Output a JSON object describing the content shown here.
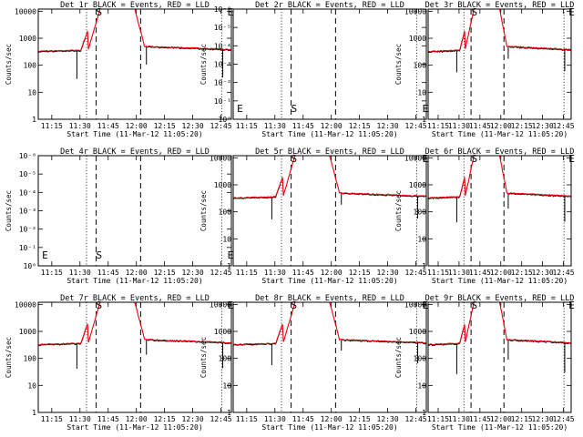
{
  "chart_data": [
    {
      "id": "det1r",
      "type": "line",
      "title": "Det 1r BLACK = Events, RED = LLD",
      "xlabel": "Start Time (11-Mar-12 11:05:20)",
      "ylabel": "Counts/sec",
      "scale": "log",
      "ylim": [
        1,
        12000
      ],
      "yticks": [
        1,
        10,
        100,
        1000,
        10000
      ],
      "ytick_labels": [
        "1",
        "10",
        "100",
        "1000",
        "10000"
      ],
      "xticks": [
        "11:15",
        "11:30",
        "11:45",
        "12:00",
        "12:15",
        "12:30",
        "12:45"
      ],
      "has_data": true,
      "dip_depth": 0.35,
      "flags": [
        {
          "t": 29,
          "label": "S"
        },
        {
          "t": 97,
          "label": "E"
        }
      ]
    },
    {
      "id": "det2r",
      "type": "line",
      "title": "Det 2r BLACK = Events, RED = LLD",
      "xlabel": "Start Time (11-Mar-12 11:05:20)",
      "ylabel": "Counts/sec",
      "scale": "log",
      "ylim": [
        1,
        1e-06
      ],
      "yticks": [
        1,
        0.1,
        0.01,
        0.001,
        0.0001,
        1e-05,
        1e-06
      ],
      "ytick_labels": [
        "10⁰",
        "10⁻¹",
        "10⁻²",
        "10⁻³",
        "10⁻⁴",
        "10⁻⁵",
        "10⁻⁶"
      ],
      "xticks": [
        "11:15",
        "11:30",
        "11:45",
        "12:00",
        "12:15",
        "12:30",
        "12:45"
      ],
      "has_data": false,
      "flags": [
        {
          "t": 1,
          "label": "E"
        },
        {
          "t": 29,
          "label": "S"
        },
        {
          "t": 97,
          "label": "E"
        }
      ]
    },
    {
      "id": "det3r",
      "type": "line",
      "title": "Det 3r BLACK = Events, RED = LLD",
      "xlabel": "Start Time (11-Mar-12 11:05:20)",
      "ylabel": "Counts/sec",
      "scale": "log",
      "ylim": [
        1,
        12000
      ],
      "yticks": [
        1,
        10,
        100,
        1000,
        10000
      ],
      "ytick_labels": [
        "1",
        "10",
        "100",
        "1000",
        "10000"
      ],
      "xticks": [
        "11:15",
        "11:30",
        "11:45",
        "12:00",
        "12:15",
        "12:30",
        "12:45"
      ],
      "has_data": true,
      "dip_depth": 0.6,
      "flags": [
        {
          "t": 29,
          "label": "S"
        },
        {
          "t": 97,
          "label": "E"
        }
      ]
    },
    {
      "id": "det4r",
      "type": "line",
      "title": "Det 4r BLACK = Events, RED = LLD",
      "xlabel": "Start Time (11-Mar-12 11:05:20)",
      "ylabel": "Counts/sec",
      "scale": "log",
      "ylim": [
        1,
        1e-06
      ],
      "yticks": [
        1,
        0.1,
        0.01,
        0.001,
        0.0001,
        1e-05,
        1e-06
      ],
      "ytick_labels": [
        "10⁰",
        "10⁻¹",
        "10⁻²",
        "10⁻³",
        "10⁻⁴",
        "10⁻⁵",
        "10⁻⁶"
      ],
      "xticks": [
        "11:15",
        "11:30",
        "11:45",
        "12:00",
        "12:15",
        "12:30",
        "12:45"
      ],
      "has_data": false,
      "flags": [
        {
          "t": 1,
          "label": "E"
        },
        {
          "t": 29,
          "label": "S"
        },
        {
          "t": 97,
          "label": "E"
        }
      ]
    },
    {
      "id": "det5r",
      "type": "line",
      "title": "Det 5r BLACK = Events, RED = LLD",
      "xlabel": "Start Time (11-Mar-12 11:05:20)",
      "ylabel": "Counts/sec",
      "scale": "log",
      "ylim": [
        1,
        12000
      ],
      "yticks": [
        1,
        10,
        100,
        1000,
        10000
      ],
      "ytick_labels": [
        "1",
        "10",
        "100",
        "1000",
        "10000"
      ],
      "xticks": [
        "11:15",
        "11:30",
        "11:45",
        "12:00",
        "12:15",
        "12:30",
        "12:45"
      ],
      "has_data": true,
      "dip_depth": 0.6,
      "flags": [
        {
          "t": 29,
          "label": "S"
        },
        {
          "t": 97,
          "label": "E"
        }
      ]
    },
    {
      "id": "det6r",
      "type": "line",
      "title": "Det 6r BLACK = Events, RED = LLD",
      "xlabel": "Start Time (11-Mar-12 11:05:20)",
      "ylabel": "Counts/sec",
      "scale": "log",
      "ylim": [
        1,
        12000
      ],
      "yticks": [
        1,
        10,
        100,
        1000,
        10000
      ],
      "ytick_labels": [
        "1",
        "10",
        "100",
        "1000",
        "10000"
      ],
      "xticks": [
        "11:15",
        "11:30",
        "11:45",
        "12:00",
        "12:15",
        "12:30",
        "12:45"
      ],
      "has_data": true,
      "dip_depth": 0.45,
      "flags": [
        {
          "t": 29,
          "label": "S"
        },
        {
          "t": 97,
          "label": "E"
        }
      ]
    },
    {
      "id": "det7r",
      "type": "line",
      "title": "Det 7r BLACK = Events, RED = LLD",
      "xlabel": "Start Time (11-Mar-12 11:05:20)",
      "ylabel": "Counts/sec",
      "scale": "log",
      "ylim": [
        1,
        12000
      ],
      "yticks": [
        1,
        10,
        100,
        1000,
        10000
      ],
      "ytick_labels": [
        "1",
        "10",
        "100",
        "1000",
        "10000"
      ],
      "xticks": [
        "11:15",
        "11:30",
        "11:45",
        "12:00",
        "12:15",
        "12:30",
        "12:45"
      ],
      "has_data": true,
      "dip_depth": 0.45,
      "flags": [
        {
          "t": 29,
          "label": "S"
        },
        {
          "t": 97,
          "label": "E"
        }
      ]
    },
    {
      "id": "det8r",
      "type": "line",
      "title": "Det 8r BLACK = Events, RED = LLD",
      "xlabel": "Start Time (11-Mar-12 11:05:20)",
      "ylabel": "Counts/sec",
      "scale": "log",
      "ylim": [
        1,
        12000
      ],
      "yticks": [
        1,
        10,
        100,
        1000,
        10000
      ],
      "ytick_labels": [
        "1",
        "10",
        "100",
        "1000",
        "10000"
      ],
      "xticks": [
        "11:15",
        "11:30",
        "11:45",
        "12:00",
        "12:15",
        "12:30",
        "12:45"
      ],
      "has_data": true,
      "dip_depth": 0.65,
      "flags": [
        {
          "t": 29,
          "label": "S"
        },
        {
          "t": 97,
          "label": "E"
        }
      ]
    },
    {
      "id": "det9r",
      "type": "line",
      "title": "Det 9r BLACK = Events, RED = LLD",
      "xlabel": "Start Time (11-Mar-12 11:05:20)",
      "ylabel": "Counts/sec",
      "scale": "log",
      "ylim": [
        1,
        12000
      ],
      "yticks": [
        1,
        10,
        100,
        1000,
        10000
      ],
      "ytick_labels": [
        "1",
        "10",
        "100",
        "1000",
        "10000"
      ],
      "xticks": [
        "11:15",
        "11:30",
        "11:45",
        "12:00",
        "12:15",
        "12:30",
        "12:45"
      ],
      "has_data": true,
      "dip_depth": 0.3,
      "flags": [
        {
          "t": 29,
          "label": "S"
        },
        {
          "t": 97,
          "label": "E"
        }
      ]
    }
  ],
  "series": {
    "events": {
      "name": "Events",
      "color": "#000000"
    },
    "lld": {
      "name": "LLD",
      "color": "#e8000b"
    },
    "baseline_value": 400,
    "peak_value": 12000,
    "flare_start_min": 26,
    "flare_peak_min": 35,
    "flare_decay_end_min": 55,
    "time_range_min": [
      0,
      100
    ]
  },
  "markers": {
    "dotted_lines_min": [
      25,
      95
    ],
    "dashed_lines_min": [
      30,
      53
    ]
  }
}
